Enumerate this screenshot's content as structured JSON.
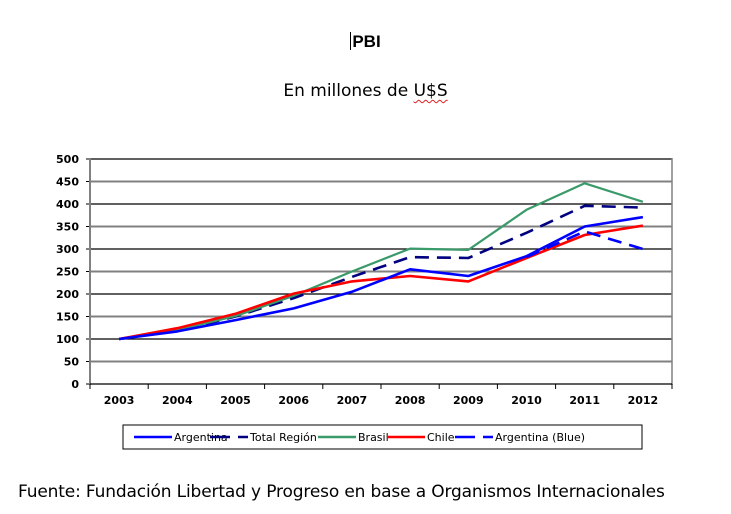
{
  "header": {
    "title": "PBI",
    "subtitle_prefix": "En millones de ",
    "subtitle_currency": "U$S"
  },
  "footer": {
    "source": "Fuente: Fundación Libertad y Progreso en base a Organismos Internacionales"
  },
  "chart_data": {
    "type": "line",
    "title": "PBI",
    "subtitle": "En millones de U$S",
    "xlabel": "",
    "ylabel": "",
    "ylim": [
      0,
      500
    ],
    "yticks": [
      0,
      50,
      100,
      150,
      200,
      250,
      300,
      350,
      400,
      450,
      500
    ],
    "ytick_labels": [
      "0",
      "50",
      "100",
      "150",
      "200",
      "250",
      "300",
      "350",
      "400",
      "450",
      "500"
    ],
    "categories": [
      "2003",
      "2004",
      "2005",
      "2006",
      "2007",
      "2008",
      "2009",
      "2010",
      "2011",
      "2012"
    ],
    "grid": true,
    "legend_position": "bottom",
    "series": [
      {
        "name": "Total Región",
        "color": "#000080",
        "style": "dashed",
        "values": [
          100,
          118,
          150,
          191,
          238,
          282,
          280,
          336,
          396,
          392
        ]
      },
      {
        "name": "Brasil",
        "color": "#3a9a6a",
        "style": "solid",
        "values": [
          100,
          120,
          151,
          196,
          250,
          301,
          298,
          387,
          446,
          405
        ]
      },
      {
        "name": "Chile",
        "color": "#ff0000",
        "style": "solid",
        "values": [
          100,
          124,
          156,
          201,
          228,
          240,
          228,
          280,
          331,
          352
        ]
      },
      {
        "name": "Argentina",
        "color": "#0000ff",
        "style": "solid",
        "values": [
          100,
          117,
          142,
          168,
          205,
          255,
          240,
          284,
          350,
          371
        ]
      },
      {
        "name": "Argentina (Blue)",
        "color": "#0000ff",
        "style": "dashed",
        "values": [
          null,
          null,
          null,
          null,
          null,
          null,
          null,
          282,
          339,
          300
        ]
      }
    ],
    "legend_order": [
      "Argentina",
      "Total Región",
      "Brasil",
      "Chile",
      "Argentina (Blue)"
    ]
  }
}
